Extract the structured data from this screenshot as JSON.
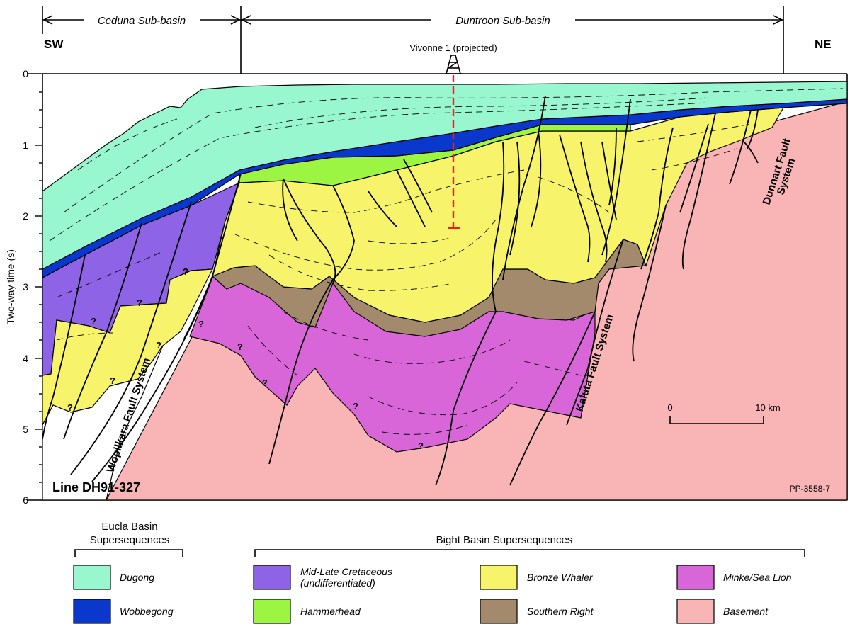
{
  "header": {
    "ceduna": "Ceduna Sub-basin",
    "duntroon": "Duntroon Sub-basin",
    "sw": "SW",
    "ne": "NE",
    "well": "Vivonne 1 (projected)"
  },
  "axis": {
    "label": "Two-way time (s)",
    "ticks": [
      "0",
      "1",
      "2",
      "3",
      "4",
      "5",
      "6"
    ]
  },
  "section": {
    "line_name": "Line DH91-327",
    "ref": "PP-3558-7",
    "faults": {
      "wopilkara": "Wopilkara Fault System",
      "kaluta": "Kaluta Fault System",
      "dunnart_1": "Dunnart Fault",
      "dunnart_2": "System"
    },
    "query": "?",
    "scale": {
      "start": "0",
      "end": "10 km"
    }
  },
  "legend": {
    "eucla_title_1": "Eucla Basin",
    "eucla_title_2": "Supersequences",
    "bight_title": "Bight Basin Supersequences",
    "items": {
      "dugong": "Dugong",
      "wobbegong": "Wobbegong",
      "cretaceous_1": "Mid-Late Cretaceous",
      "cretaceous_2": "(undifferentiated)",
      "hammerhead": "Hammerhead",
      "bronze_whaler": "Bronze Whaler",
      "southern_right": "Southern Right",
      "minke": "Minke/Sea Lion",
      "basement": "Basement"
    }
  },
  "colors": {
    "dugong": "#99f7cf",
    "wobbegong": "#0a37cc",
    "cretaceous": "#8e63e6",
    "hammerhead": "#9cf542",
    "bronze_whaler": "#f7f46c",
    "southern_right": "#a38a6c",
    "minke": "#d866d8",
    "basement": "#f9b5b5",
    "well_dash": "#e8231c"
  }
}
